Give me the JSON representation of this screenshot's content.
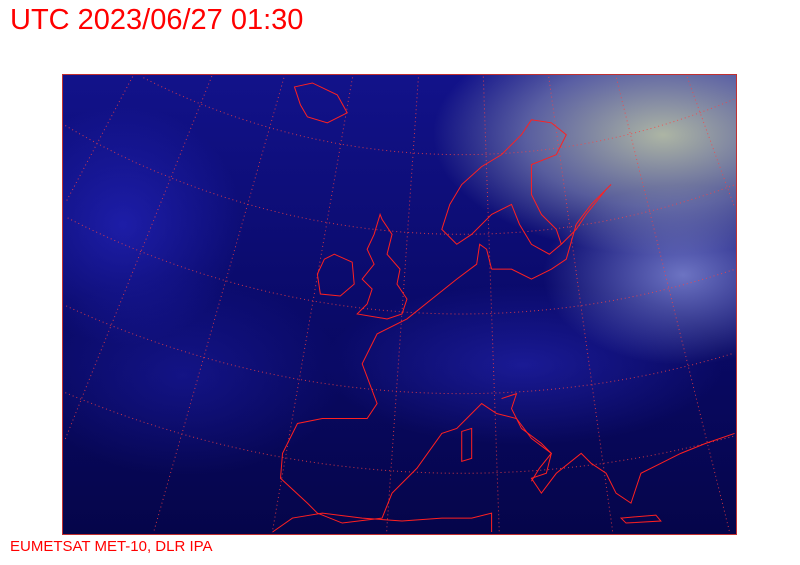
{
  "header": {
    "title": "UTC 2023/06/27 01:30"
  },
  "map": {
    "source_image": "satellite composite (EUMETSAT MET-10), Europe/North Atlantic",
    "coastline_color": "#ff2020",
    "graticule_color": "#ff4040"
  },
  "footer": {
    "credit": "EUMETSAT MET-10, DLR IPA"
  }
}
